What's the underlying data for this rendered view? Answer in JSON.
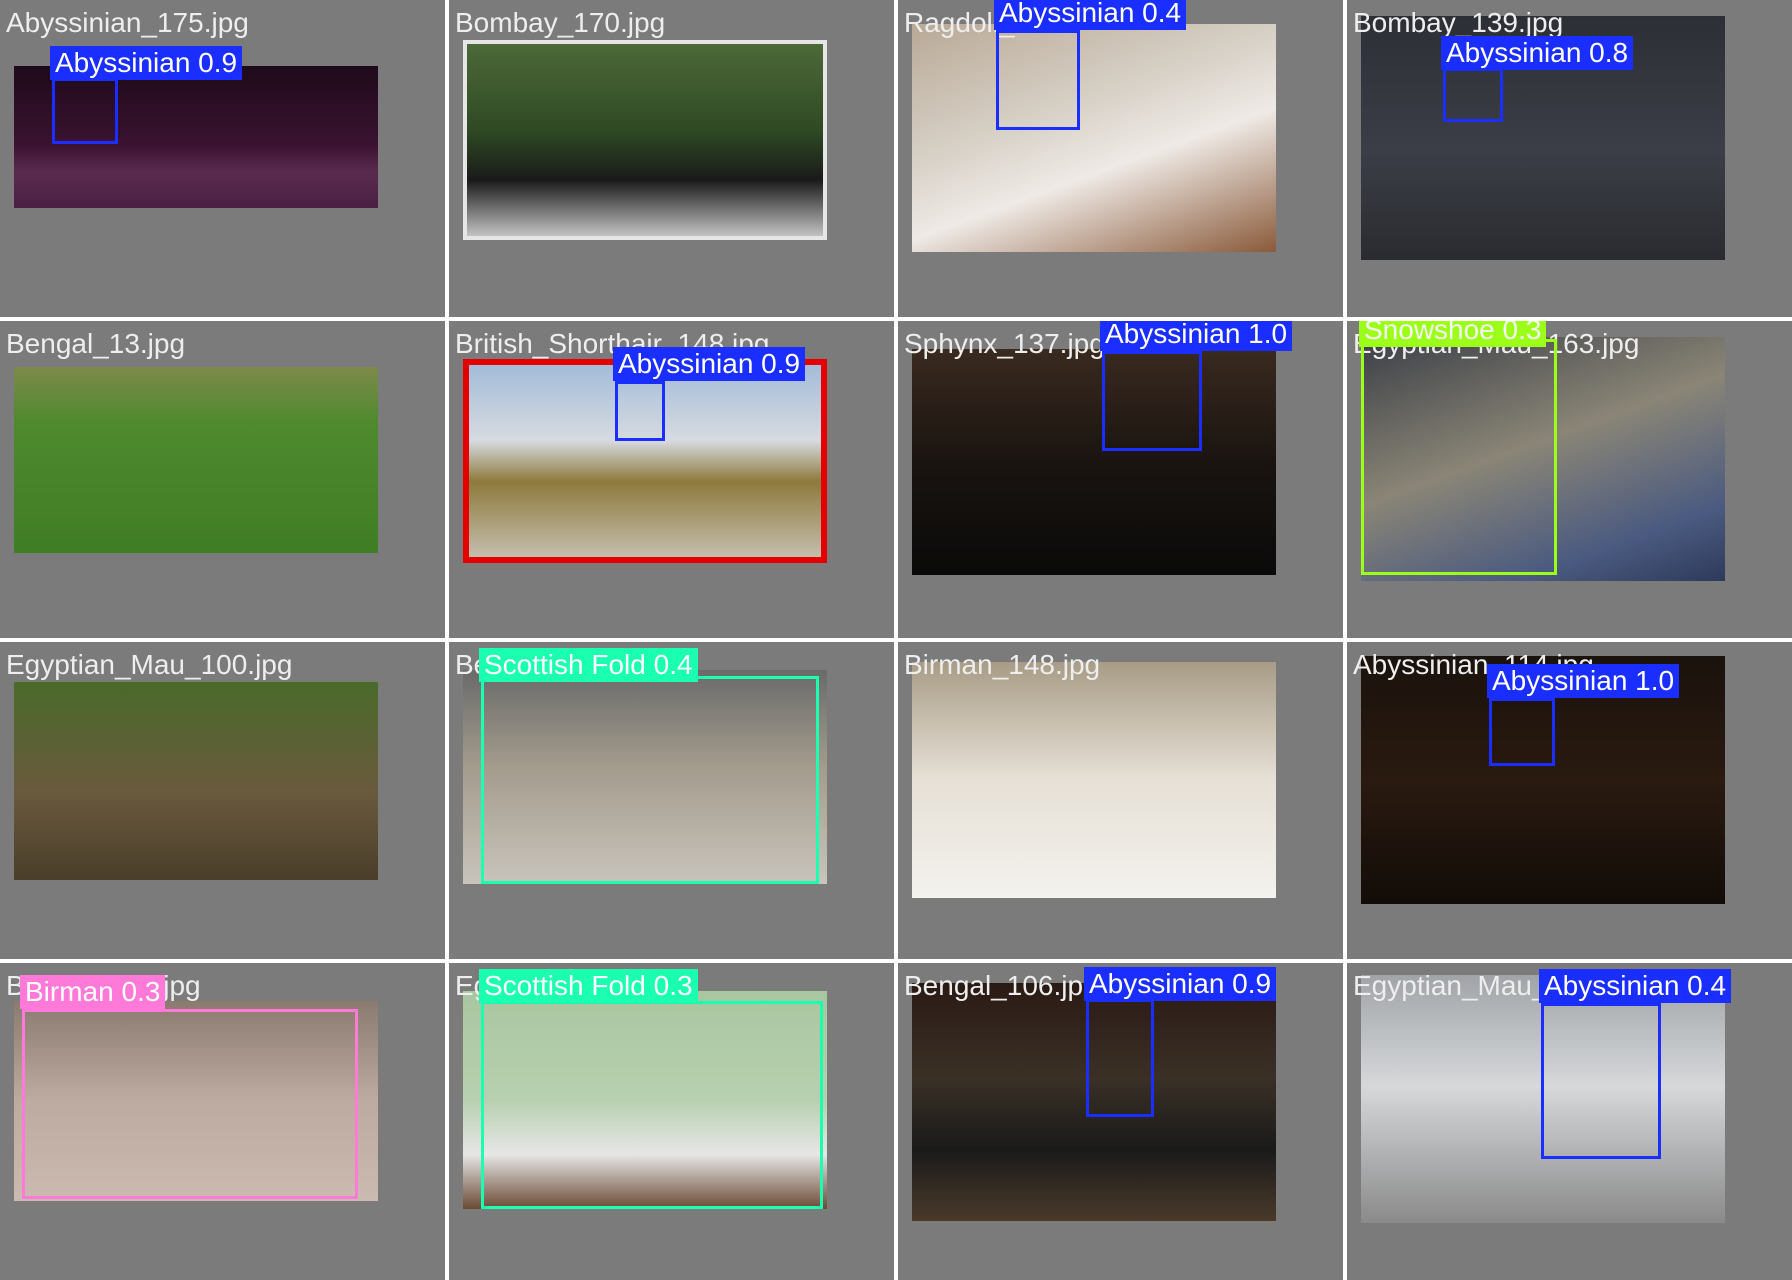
{
  "colors": {
    "Abyssinian": "#1a2fff",
    "Snowshoe": "#9cff1a",
    "Scottish Fold": "#1affb0",
    "Birman": "#ff7ad8"
  },
  "tiles": [
    {
      "filename": "Abyssinian_175.jpg",
      "detections": [
        {
          "label": "Abyssinian 0.9",
          "class": "Abyssinian"
        }
      ]
    },
    {
      "filename": "Bombay_170.jpg",
      "detections": []
    },
    {
      "filename": "Ragdoll_",
      "detections": [
        {
          "label": "Abyssinian 0.4",
          "class": "Abyssinian"
        }
      ]
    },
    {
      "filename": "Bombay_139.jpg",
      "detections": [
        {
          "label": "Abyssinian 0.8",
          "class": "Abyssinian"
        }
      ]
    },
    {
      "filename": "Bengal_13.jpg",
      "detections": []
    },
    {
      "filename": "British_Shorthair_148.jpg",
      "detections": [
        {
          "label": "Abyssinian 0.9",
          "class": "Abyssinian"
        }
      ]
    },
    {
      "filename": "Sphynx_137.jpg",
      "detections": [
        {
          "label": "Abyssinian 1.0",
          "class": "Abyssinian"
        }
      ]
    },
    {
      "filename": "Egyptian_Mau_163.jpg",
      "detections": [
        {
          "label": "Snowshoe 0.3",
          "class": "Snowshoe"
        }
      ]
    },
    {
      "filename": "Egyptian_Mau_100.jpg",
      "detections": []
    },
    {
      "filename": "Be",
      "detections": [
        {
          "label": "Scottish Fold 0.4",
          "class": "Scottish Fold"
        }
      ]
    },
    {
      "filename": "Birman_148.jpg",
      "detections": []
    },
    {
      "filename": "Abyssinian_114.jpg",
      "detections": [
        {
          "label": "Abyssinian 1.0",
          "class": "Abyssinian"
        }
      ]
    },
    {
      "filename": "Bengal_140.jpg",
      "detections": [
        {
          "label": "Birman 0.3",
          "class": "Birman"
        }
      ]
    },
    {
      "filename": "Eg                  .jpg",
      "detections": [
        {
          "label": "Scottish Fold 0.3",
          "class": "Scottish Fold"
        }
      ]
    },
    {
      "filename": "Bengal_106.jpg",
      "detections": [
        {
          "label": "Abyssinian 0.9",
          "class": "Abyssinian"
        }
      ]
    },
    {
      "filename": "Egyptian_Mau_",
      "detections": [
        {
          "label": "Abyssinian 0.4",
          "class": "Abyssinian"
        }
      ]
    }
  ]
}
